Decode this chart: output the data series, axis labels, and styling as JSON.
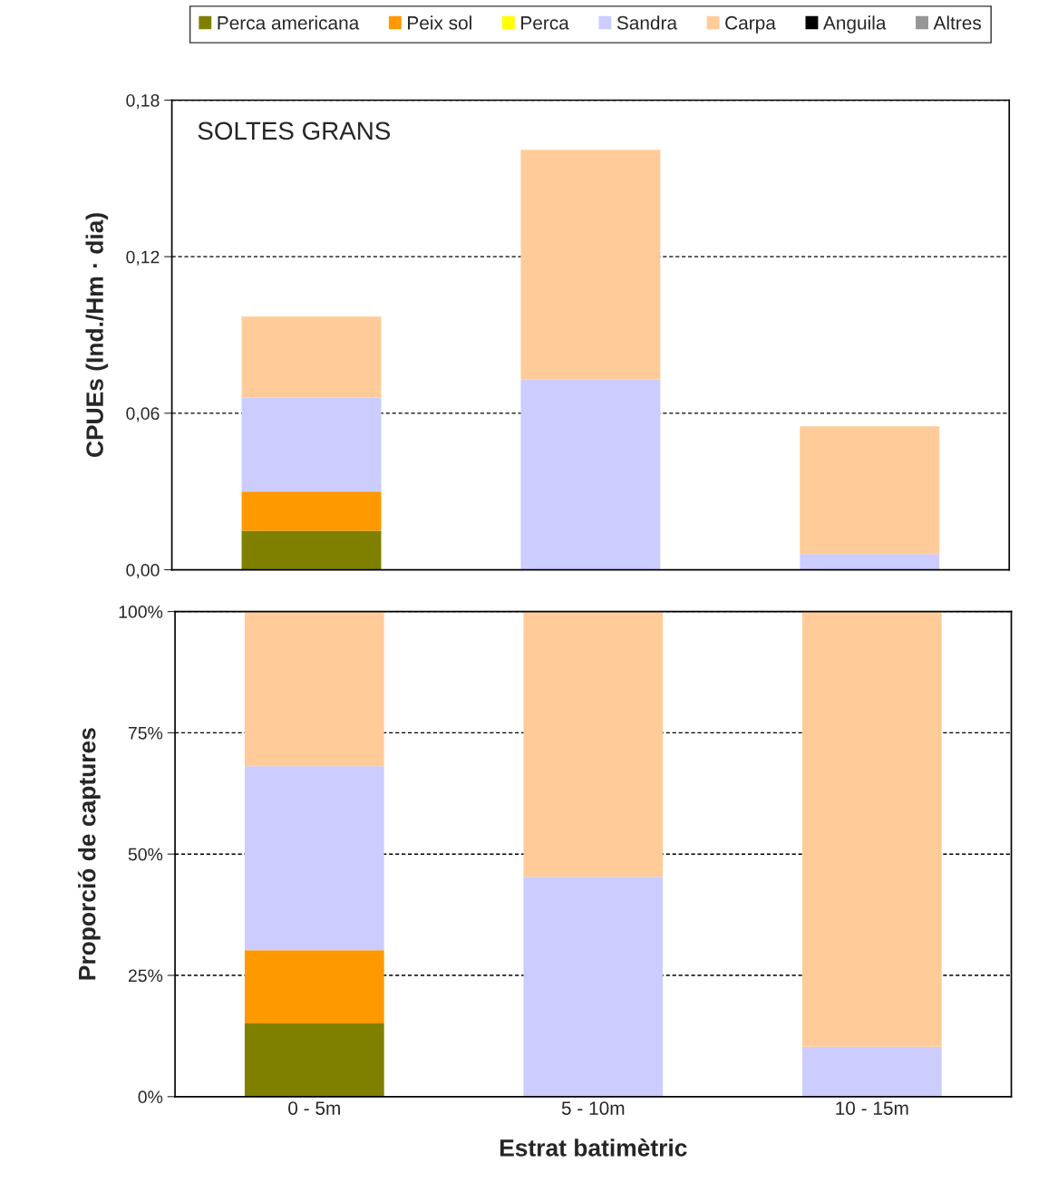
{
  "chart_data": [
    {
      "type": "bar",
      "stacked": true,
      "title": "SOLTES GRANS",
      "ylabel": "CPUEs (Ind./Hm · dia)",
      "categories": [
        null,
        null,
        null
      ],
      "tick_labels": "y",
      "legend": "top",
      "grid": "y",
      "ylim": [
        0,
        0.18
      ],
      "yticks": [
        {
          "value": 0,
          "label": "0,00"
        },
        {
          "value": 0.06,
          "label": "0,06"
        },
        {
          "value": 0.12,
          "label": "0,12"
        },
        {
          "value": 0.18,
          "label": "0,18"
        }
      ],
      "series": [
        {
          "name": "Perca americana",
          "color": "#808000",
          "values": [
            0.015,
            0,
            0
          ]
        },
        {
          "name": "Peix sol",
          "color": "#ff9900",
          "values": [
            0.015,
            0,
            0
          ]
        },
        {
          "name": "Perca",
          "color": "#ffff00",
          "values": [
            0,
            0,
            0
          ]
        },
        {
          "name": "Sandra",
          "color": "#ccccff",
          "values": [
            0.036,
            0.073,
            0.006
          ]
        },
        {
          "name": "Carpa",
          "color": "#ffcc99",
          "values": [
            0.031,
            0.088,
            0.049
          ]
        },
        {
          "name": "Anguila",
          "color": "#000000",
          "values": [
            0,
            0,
            0
          ]
        },
        {
          "name": "Altres",
          "color": "#969696",
          "values": [
            0,
            0,
            0
          ]
        }
      ]
    },
    {
      "type": "bar",
      "stacked": true,
      "ylabel": "Proporció de captures",
      "xlabel": "Estrat batimètric",
      "categories": [
        "0 - 5m",
        "5 - 10m",
        "10 - 15m"
      ],
      "grid": "y",
      "ylim": [
        0,
        100
      ],
      "yticks": [
        {
          "value": 0,
          "label": "0%"
        },
        {
          "value": 25,
          "label": "25%"
        },
        {
          "value": 50,
          "label": "50%"
        },
        {
          "value": 75,
          "label": "75%"
        },
        {
          "value": 100,
          "label": "100%"
        }
      ],
      "series": [
        {
          "color": "#808000",
          "values": [
            15.1,
            0,
            0
          ]
        },
        {
          "color": "#ff9900",
          "values": [
            15.1,
            0,
            0
          ]
        },
        {
          "color": "#ffff00",
          "values": [
            0,
            0,
            0
          ]
        },
        {
          "color": "#ccccff",
          "values": [
            37.9,
            45.3,
            10.3
          ]
        },
        {
          "color": "#ffcc99",
          "values": [
            31.9,
            54.7,
            89.7
          ]
        },
        {
          "color": "#000000",
          "values": [
            0,
            0,
            0
          ]
        },
        {
          "color": "#969696",
          "values": [
            0,
            0,
            0
          ]
        }
      ]
    }
  ]
}
